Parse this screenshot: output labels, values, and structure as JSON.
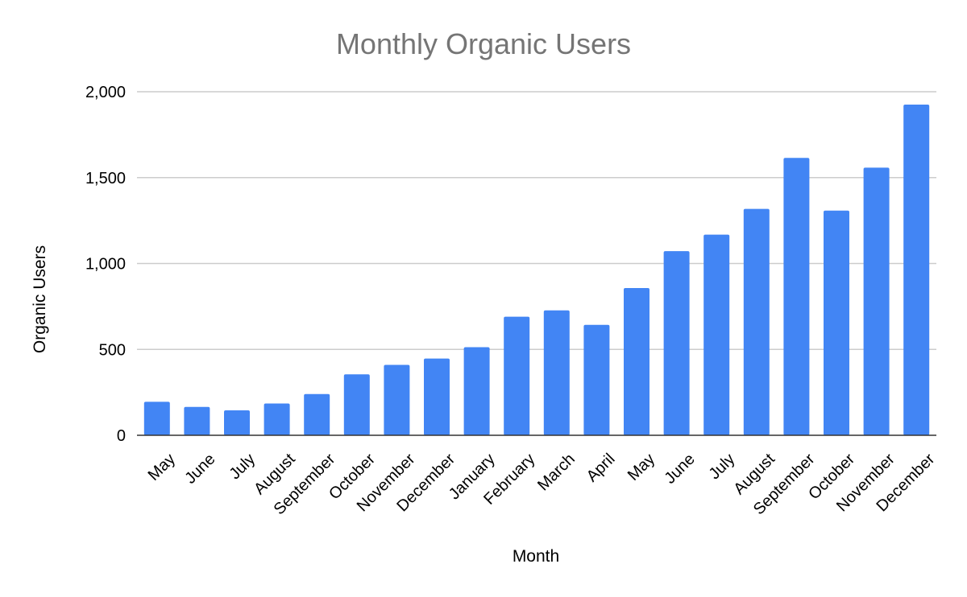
{
  "chart_data": {
    "type": "bar",
    "title": "Monthly Organic Users",
    "xlabel": "Month",
    "ylabel": "Organic Users",
    "categories": [
      "May",
      "June",
      "July",
      "August",
      "September",
      "October",
      "November",
      "December",
      "January",
      "February",
      "March",
      "April",
      "May",
      "June",
      "July",
      "August",
      "September",
      "October",
      "November",
      "December"
    ],
    "values": [
      195,
      165,
      145,
      185,
      240,
      355,
      410,
      447,
      513,
      690,
      727,
      643,
      857,
      1072,
      1168,
      1318,
      1615,
      1308,
      1558,
      1925
    ],
    "ylim": [
      0,
      2000
    ],
    "yticks": [
      0,
      500,
      1000,
      1500,
      2000
    ],
    "ytick_labels": [
      "0",
      "500",
      "1,000",
      "1,500",
      "2,000"
    ],
    "grid": true,
    "legend": "none",
    "bar_color": "#4285f4"
  }
}
